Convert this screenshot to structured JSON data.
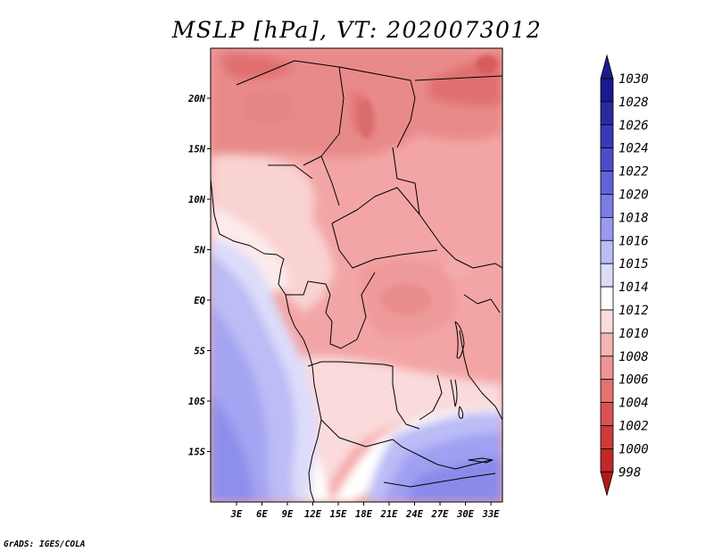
{
  "title": "MSLP [hPa], VT: 2020073012",
  "credit": "GrADS: IGES/COLA",
  "map": {
    "lon_ticks": [
      "3E",
      "6E",
      "9E",
      "12E",
      "15E",
      "18E",
      "21E",
      "24E",
      "27E",
      "30E",
      "33E"
    ],
    "lat_ticks": [
      "20N",
      "15N",
      "10N",
      "5N",
      "EQ",
      "5S",
      "10S",
      "15S"
    ]
  },
  "colorbar": {
    "labels": [
      "1030",
      "1028",
      "1026",
      "1024",
      "1022",
      "1020",
      "1018",
      "1016",
      "1015",
      "1014",
      "1012",
      "1010",
      "1008",
      "1006",
      "1004",
      "1002",
      "1000",
      "998"
    ],
    "colors": [
      "#1a1a8c",
      "#2a2aa0",
      "#3a3ab8",
      "#4c4cc8",
      "#6262d8",
      "#7c7ce6",
      "#9a9af0",
      "#bcbcf6",
      "#dcdcfa",
      "#ffffff",
      "#fadcdc",
      "#f5b5b5",
      "#ef9494",
      "#e47272",
      "#da5252",
      "#cf3a3a",
      "#c02828",
      "#b01a1a"
    ]
  }
}
